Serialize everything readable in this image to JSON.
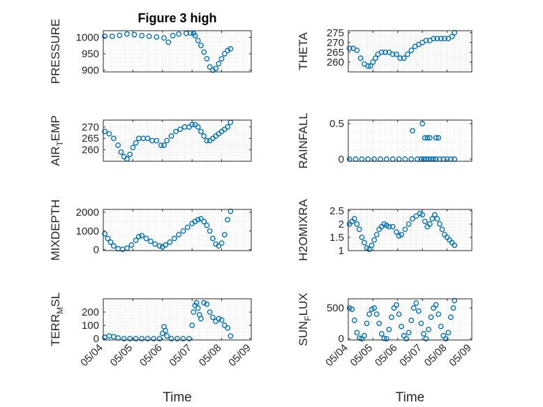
{
  "chart_data": [
    {
      "type": "scatter",
      "title": "Figure 3 high",
      "ylabel": "PRESSURE",
      "xlabel": "",
      "ylim": [
        895,
        1020
      ],
      "yticks": [
        900,
        950,
        1000
      ],
      "xlim": [
        "05/04",
        "05/09"
      ],
      "xticks": [
        "05/04",
        "05/05",
        "05/06",
        "05/07",
        "05/08",
        "05/09"
      ],
      "show_xticklabels": false,
      "grid": true,
      "color": "#0072BD",
      "series": [
        {
          "x": [
            4.05,
            4.3,
            4.55,
            4.8,
            5.05,
            5.3,
            5.55,
            5.8,
            6.05,
            6.2,
            6.35,
            6.55,
            6.8,
            6.95,
            7.05,
            7.1,
            7.2,
            7.3,
            7.4,
            7.5,
            7.6,
            7.7,
            7.8,
            7.9,
            8.0,
            8.1,
            8.2,
            8.3
          ],
          "y": [
            1003,
            1003,
            1006,
            1010,
            1008,
            1005,
            1003,
            1001,
            998,
            985,
            1005,
            1010,
            1012,
            1013,
            1012,
            1005,
            990,
            975,
            955,
            935,
            910,
            900,
            905,
            920,
            935,
            950,
            960,
            965
          ]
        }
      ]
    },
    {
      "type": "scatter",
      "title": "",
      "ylabel": "THETA",
      "xlabel": "",
      "ylim": [
        255,
        276
      ],
      "yticks": [
        260,
        265,
        270,
        275
      ],
      "xlim": [
        "05/04",
        "05/09"
      ],
      "xticks": [
        "05/04",
        "05/05",
        "05/06",
        "05/07",
        "05/08",
        "05/09"
      ],
      "show_xticklabels": false,
      "grid": true,
      "color": "#0072BD",
      "series": [
        {
          "x": [
            4.05,
            4.2,
            4.35,
            4.5,
            4.65,
            4.8,
            4.9,
            5.0,
            5.1,
            5.2,
            5.35,
            5.5,
            5.65,
            5.8,
            5.95,
            6.1,
            6.25,
            6.4,
            6.55,
            6.7,
            6.85,
            7.0,
            7.15,
            7.3,
            7.45,
            7.6,
            7.75,
            7.9,
            8.05,
            8.2,
            8.3
          ],
          "y": [
            267,
            267,
            266,
            262,
            259,
            258,
            258,
            260,
            262,
            264,
            265,
            265,
            265,
            264,
            264,
            262,
            262,
            264,
            266,
            268,
            269,
            270,
            271,
            271,
            272,
            272,
            272,
            272,
            272,
            273,
            275
          ]
        }
      ]
    },
    {
      "type": "scatter",
      "title": "",
      "ylabel": "AIR_TEMP",
      "ylabel_main": "AIR",
      "ylabel_sub": "T",
      "ylabel_rest": "EMP",
      "xlabel": "",
      "ylim": [
        255,
        273
      ],
      "yticks": [
        260,
        265,
        270
      ],
      "xlim": [
        "05/04",
        "05/09"
      ],
      "xticks": [
        "05/04",
        "05/05",
        "05/06",
        "05/07",
        "05/08",
        "05/09"
      ],
      "show_xticklabels": false,
      "grid": true,
      "color": "#0072BD",
      "series": [
        {
          "x": [
            4.05,
            4.2,
            4.35,
            4.5,
            4.6,
            4.7,
            4.8,
            4.9,
            5.0,
            5.1,
            5.2,
            5.35,
            5.5,
            5.65,
            5.8,
            5.95,
            6.05,
            6.15,
            6.3,
            6.45,
            6.6,
            6.75,
            6.9,
            7.0,
            7.1,
            7.2,
            7.3,
            7.4,
            7.5,
            7.6,
            7.7,
            7.8,
            7.9,
            8.0,
            8.1,
            8.2,
            8.3
          ],
          "y": [
            268,
            267,
            265,
            262,
            259,
            257,
            256,
            258,
            261,
            263,
            265,
            265,
            265,
            264,
            264,
            262,
            262,
            264,
            266,
            268,
            269,
            270,
            270,
            271,
            271,
            270,
            268,
            266,
            264,
            264,
            265,
            266,
            267,
            268,
            269,
            270,
            272
          ]
        }
      ]
    },
    {
      "type": "scatter",
      "title": "",
      "ylabel": "RAINFALL",
      "xlabel": "",
      "ylim": [
        -0.03,
        0.55
      ],
      "yticks": [
        0,
        0.5
      ],
      "xlim": [
        "05/04",
        "05/09"
      ],
      "xticks": [
        "05/04",
        "05/05",
        "05/06",
        "05/07",
        "05/08",
        "05/09"
      ],
      "show_xticklabels": false,
      "grid": true,
      "color": "#0072BD",
      "series": [
        {
          "x": [
            4.05,
            4.3,
            4.55,
            4.8,
            5.05,
            5.3,
            5.55,
            5.8,
            6.05,
            6.3,
            6.55,
            6.8,
            6.95,
            7.05,
            7.15,
            7.25,
            7.35,
            7.45,
            7.55,
            7.7,
            7.85,
            8.0,
            8.15,
            8.3,
            6.6,
            7.0,
            7.1,
            7.2,
            7.3,
            7.55,
            7.65
          ],
          "y": [
            0,
            0,
            0,
            0,
            0,
            0,
            0,
            0,
            0,
            0,
            0,
            0,
            0,
            0,
            0,
            0,
            0,
            0,
            0,
            0,
            0,
            0,
            0,
            0,
            0.4,
            0.5,
            0.3,
            0.3,
            0.3,
            0.3,
            0.3
          ]
        }
      ]
    },
    {
      "type": "scatter",
      "title": "",
      "ylabel": "MIXDEPTH",
      "xlabel": "",
      "ylim": [
        -50,
        2150
      ],
      "yticks": [
        0,
        1000,
        2000
      ],
      "xlim": [
        "05/04",
        "05/09"
      ],
      "xticks": [
        "05/04",
        "05/05",
        "05/06",
        "05/07",
        "05/08",
        "05/09"
      ],
      "show_xticklabels": false,
      "grid": true,
      "color": "#0072BD",
      "series": [
        {
          "x": [
            4.05,
            4.15,
            4.25,
            4.35,
            4.5,
            4.65,
            4.8,
            4.95,
            5.1,
            5.2,
            5.3,
            5.45,
            5.6,
            5.75,
            5.9,
            6.0,
            6.1,
            6.25,
            6.4,
            6.55,
            6.7,
            6.85,
            7.0,
            7.1,
            7.2,
            7.3,
            7.4,
            7.5,
            7.6,
            7.7,
            7.8,
            7.9,
            8.0,
            8.1,
            8.2,
            8.3
          ],
          "y": [
            850,
            600,
            400,
            200,
            50,
            20,
            80,
            250,
            500,
            700,
            750,
            600,
            450,
            300,
            200,
            150,
            250,
            400,
            600,
            800,
            1000,
            1200,
            1400,
            1500,
            1600,
            1650,
            1500,
            1300,
            1000,
            600,
            300,
            200,
            350,
            800,
            1600,
            2050
          ]
        }
      ]
    },
    {
      "type": "scatter",
      "title": "",
      "ylabel": "H2OMIXRA",
      "xlabel": "",
      "ylim": [
        1,
        2.55
      ],
      "yticks": [
        1,
        1.5,
        2,
        2.5
      ],
      "xlim": [
        "05/04",
        "05/09"
      ],
      "xticks": [
        "05/04",
        "05/05",
        "05/06",
        "05/07",
        "05/08",
        "05/09"
      ],
      "show_xticklabels": false,
      "grid": true,
      "color": "#0072BD",
      "series": [
        {
          "x": [
            4.05,
            4.15,
            4.25,
            4.35,
            4.45,
            4.55,
            4.65,
            4.75,
            4.85,
            4.95,
            5.05,
            5.15,
            5.25,
            5.35,
            5.45,
            5.55,
            5.65,
            5.8,
            5.95,
            6.05,
            6.15,
            6.3,
            6.45,
            6.6,
            6.75,
            6.9,
            7.0,
            7.1,
            7.2,
            7.3,
            7.4,
            7.5,
            7.6,
            7.7,
            7.8,
            7.9,
            8.0,
            8.1,
            8.2,
            8.3
          ],
          "y": [
            2.0,
            2.1,
            2.2,
            2.0,
            1.8,
            1.5,
            1.3,
            1.1,
            1.05,
            1.2,
            1.4,
            1.6,
            1.8,
            1.9,
            2.0,
            1.95,
            1.9,
            1.9,
            1.7,
            1.55,
            1.6,
            1.8,
            2.0,
            2.2,
            2.3,
            2.4,
            2.35,
            2.1,
            1.9,
            2.0,
            2.2,
            2.35,
            2.2,
            2.0,
            1.8,
            1.6,
            1.5,
            1.4,
            1.3,
            1.2
          ]
        }
      ]
    },
    {
      "type": "scatter",
      "title": "",
      "ylabel": "TERR_MSL",
      "ylabel_main": "TERR",
      "ylabel_sub": "M",
      "ylabel_rest": "SL",
      "xlabel": "Time",
      "ylim": [
        -10,
        300
      ],
      "yticks": [
        0,
        100,
        200
      ],
      "xlim": [
        "05/04",
        "05/09"
      ],
      "xticks": [
        "05/04",
        "05/05",
        "05/06",
        "05/07",
        "05/08",
        "05/09"
      ],
      "show_xticklabels": true,
      "grid": true,
      "color": "#0072BD",
      "series": [
        {
          "x": [
            4.05,
            4.2,
            4.35,
            4.5,
            4.7,
            4.9,
            5.1,
            5.3,
            5.5,
            5.7,
            5.9,
            6.0,
            6.05,
            6.1,
            6.15,
            6.3,
            6.5,
            6.7,
            6.9,
            7.0,
            7.05,
            7.1,
            7.15,
            7.2,
            7.25,
            7.3,
            7.4,
            7.5,
            7.6,
            7.7,
            7.8,
            7.9,
            8.0,
            8.1,
            8.2,
            8.3
          ],
          "y": [
            10,
            20,
            15,
            5,
            0,
            0,
            0,
            0,
            0,
            0,
            0,
            40,
            90,
            60,
            20,
            0,
            0,
            0,
            0,
            100,
            200,
            250,
            270,
            230,
            180,
            150,
            270,
            260,
            200,
            160,
            130,
            150,
            140,
            100,
            80,
            20
          ]
        }
      ]
    },
    {
      "type": "scatter",
      "title": "",
      "ylabel": "SUN_FLUX",
      "ylabel_main": "SUN",
      "ylabel_sub": "F",
      "ylabel_rest": "LUX",
      "xlabel": "Time",
      "ylim": [
        -20,
        650
      ],
      "yticks": [
        0,
        500
      ],
      "xlim": [
        "05/04",
        "05/09"
      ],
      "xticks": [
        "05/04",
        "05/05",
        "05/06",
        "05/07",
        "05/08",
        "05/09"
      ],
      "show_xticklabels": true,
      "grid": true,
      "color": "#0072BD",
      "series": [
        {
          "x": [
            4.05,
            4.15,
            4.25,
            4.35,
            4.45,
            4.55,
            4.65,
            4.75,
            4.85,
            4.95,
            5.05,
            5.15,
            5.25,
            5.35,
            5.45,
            5.55,
            5.65,
            5.75,
            5.85,
            5.95,
            6.05,
            6.15,
            6.25,
            6.35,
            6.45,
            6.55,
            6.65,
            6.75,
            6.85,
            6.95,
            7.05,
            7.15,
            7.25,
            7.35,
            7.45,
            7.55,
            7.65,
            7.75,
            7.85,
            7.95,
            8.05,
            8.15,
            8.25,
            8.3
          ],
          "y": [
            500,
            480,
            300,
            100,
            10,
            0,
            50,
            250,
            400,
            480,
            500,
            400,
            250,
            80,
            5,
            0,
            150,
            350,
            500,
            550,
            400,
            200,
            50,
            0,
            100,
            300,
            500,
            580,
            450,
            250,
            80,
            0,
            150,
            350,
            500,
            550,
            400,
            200,
            50,
            0,
            100,
            350,
            500,
            620
          ]
        }
      ]
    }
  ]
}
